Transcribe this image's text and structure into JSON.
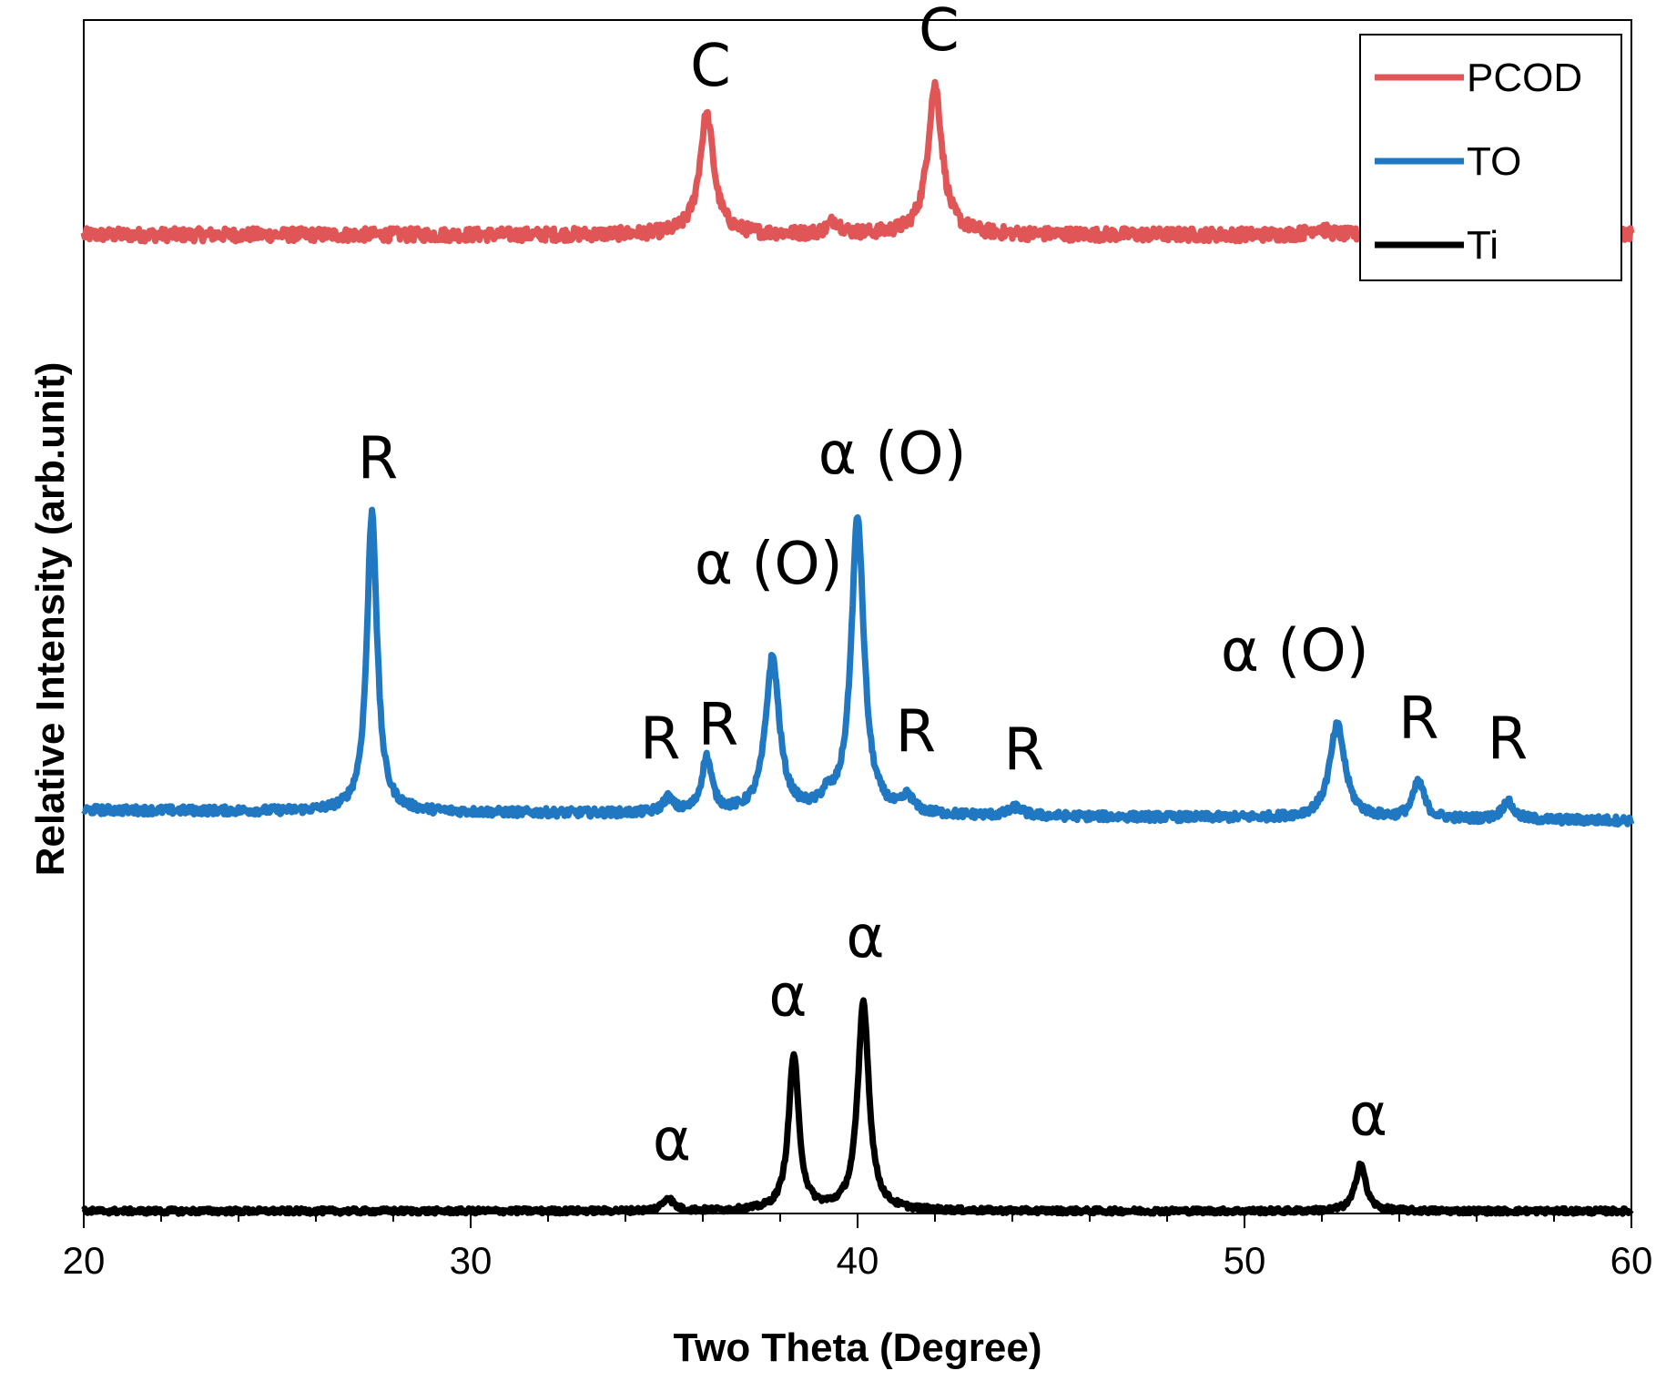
{
  "chart_data": {
    "type": "line",
    "title": "",
    "xlabel": "Two Theta (Degree)",
    "ylabel": "Relative Intensity (arb.unit)",
    "xlim": [
      20,
      60
    ],
    "ylim": [
      0,
      100
    ],
    "x_ticks": [
      20,
      30,
      40,
      50,
      60
    ],
    "x_minor_step": 2,
    "y_ticks_shown": false,
    "grid": false,
    "legend": {
      "position": "top-right"
    },
    "series": [
      {
        "name": "PCOD",
        "color": "#e05555",
        "baseline": 82,
        "noise": 0.55,
        "peaks": [
          {
            "center": 36.1,
            "height": 10.0,
            "width": 0.28
          },
          {
            "center": 39.4,
            "height": 1.1,
            "width": 0.25
          },
          {
            "center": 42.0,
            "height": 12.5,
            "width": 0.28
          },
          {
            "center": 51.9,
            "height": 0.6,
            "width": 0.3
          }
        ]
      },
      {
        "name": "TO",
        "color": "#1f78c1",
        "baseline": 33.8,
        "slope": -0.022,
        "noise": 0.35,
        "peaks": [
          {
            "center": 27.45,
            "height": 25.2,
            "width": 0.2
          },
          {
            "center": 35.1,
            "height": 1.2,
            "width": 0.2
          },
          {
            "center": 36.1,
            "height": 4.6,
            "width": 0.2
          },
          {
            "center": 37.8,
            "height": 13.0,
            "width": 0.27
          },
          {
            "center": 39.2,
            "height": 1.0,
            "width": 0.2
          },
          {
            "center": 40.0,
            "height": 24.8,
            "width": 0.25
          },
          {
            "center": 41.3,
            "height": 1.3,
            "width": 0.2
          },
          {
            "center": 44.1,
            "height": 0.7,
            "width": 0.25
          },
          {
            "center": 52.4,
            "height": 7.8,
            "width": 0.3
          },
          {
            "center": 54.5,
            "height": 3.1,
            "width": 0.22
          },
          {
            "center": 56.8,
            "height": 1.5,
            "width": 0.22
          }
        ]
      },
      {
        "name": "Ti",
        "color": "#000000",
        "baseline": 0.2,
        "noise": 0.22,
        "peaks": [
          {
            "center": 35.1,
            "height": 1.1,
            "width": 0.2
          },
          {
            "center": 38.35,
            "height": 13.0,
            "width": 0.2
          },
          {
            "center": 40.15,
            "height": 17.5,
            "width": 0.22
          },
          {
            "center": 53.0,
            "height": 4.0,
            "width": 0.2
          }
        ]
      }
    ],
    "annotations": [
      {
        "text": "C",
        "x": 36.2,
        "y": 94.5
      },
      {
        "text": "C",
        "x": 42.1,
        "y": 97.5
      },
      {
        "text": "R",
        "x": 27.6,
        "y": 61.6
      },
      {
        "text": "R",
        "x": 34.9,
        "y": 38.1
      },
      {
        "text": "R",
        "x": 36.4,
        "y": 39.3
      },
      {
        "text": "α (O)",
        "x": 37.7,
        "y": 52.8
      },
      {
        "text": "α (O)",
        "x": 40.9,
        "y": 62.0
      },
      {
        "text": "R",
        "x": 41.5,
        "y": 38.7
      },
      {
        "text": "R",
        "x": 44.3,
        "y": 37.2
      },
      {
        "text": "α (O)",
        "x": 51.3,
        "y": 45.5
      },
      {
        "text": "R",
        "x": 54.5,
        "y": 39.8
      },
      {
        "text": "R",
        "x": 56.8,
        "y": 38.1
      },
      {
        "text": "α",
        "x": 35.2,
        "y": 4.5
      },
      {
        "text": "α",
        "x": 38.2,
        "y": 16.6
      },
      {
        "text": "α",
        "x": 40.2,
        "y": 21.5
      },
      {
        "text": "α",
        "x": 53.2,
        "y": 6.6
      }
    ]
  }
}
